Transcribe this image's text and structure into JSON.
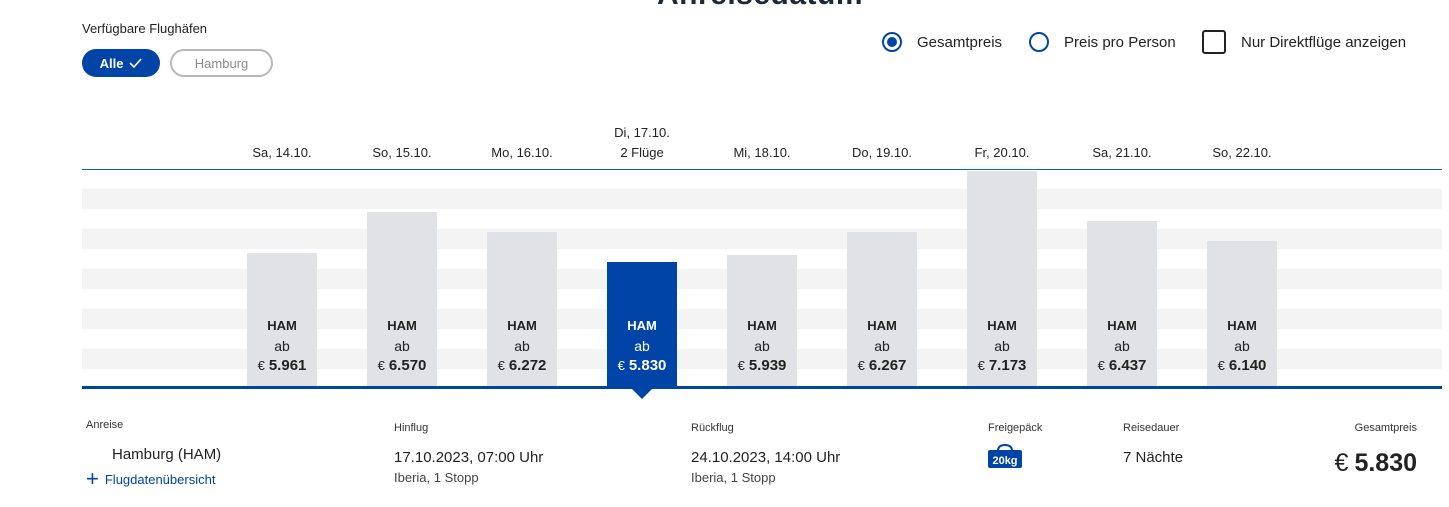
{
  "heading": "Anreisedatum",
  "airports": {
    "label": "Verfügbare Flughäfen",
    "pills": [
      {
        "label": "Alle",
        "selected": true
      },
      {
        "label": "Hamburg",
        "selected": false
      }
    ]
  },
  "options": {
    "gesamtpreis": {
      "label": "Gesamtpreis",
      "checked": true
    },
    "preis_pro_person": {
      "label": "Preis pro Person",
      "checked": false
    },
    "nur_direkt": {
      "label": "Nur Direktflüge anzeigen",
      "checked": false
    }
  },
  "chart_data": {
    "type": "bar",
    "categories": [
      "Sa, 14.10.",
      "So, 15.10.",
      "Mo, 16.10.",
      "Di, 17.10.",
      "Mi, 18.10.",
      "Do, 19.10.",
      "Fr, 20.10.",
      "Sa, 21.10.",
      "So, 22.10."
    ],
    "values": [
      5961,
      6570,
      6272,
      5830,
      5939,
      6267,
      7173,
      6437,
      6140
    ],
    "price_labels": [
      "5.961",
      "6.570",
      "6.272",
      "5.830",
      "5.939",
      "6.267",
      "7.173",
      "6.437",
      "6.140"
    ],
    "currency": "€",
    "airport_code": "HAM",
    "ab_label": "ab",
    "selected_index": 3,
    "selected_sublabel": "2 Flüge",
    "ylim": [
      0,
      7200
    ],
    "grid": true,
    "selected_color": "#0044a8",
    "bar_color": "#e1e2e6"
  },
  "details": {
    "anreise_label": "Anreise",
    "anreise_value": "Hamburg  (HAM)",
    "overview_link": "Flugdatenübersicht",
    "hinflug_label": "Hinflug",
    "hinflug_value": "17.10.2023, 07:00 Uhr",
    "hinflug_sub": "Iberia, 1 Stopp",
    "rueckflug_label": "Rückflug",
    "rueckflug_value": "24.10.2023, 14:00 Uhr",
    "rueckflug_sub": "Iberia, 1 Stopp",
    "gepaeck_label": "Freigepäck",
    "gepaeck_badge": "20kg",
    "dauer_label": "Reisedauer",
    "dauer_value": "7 Nächte",
    "gesamt_label": "Gesamtpreis",
    "gesamt_currency": "€",
    "gesamt_value": "5.830"
  },
  "colors": {
    "accent": "#0044a8"
  }
}
